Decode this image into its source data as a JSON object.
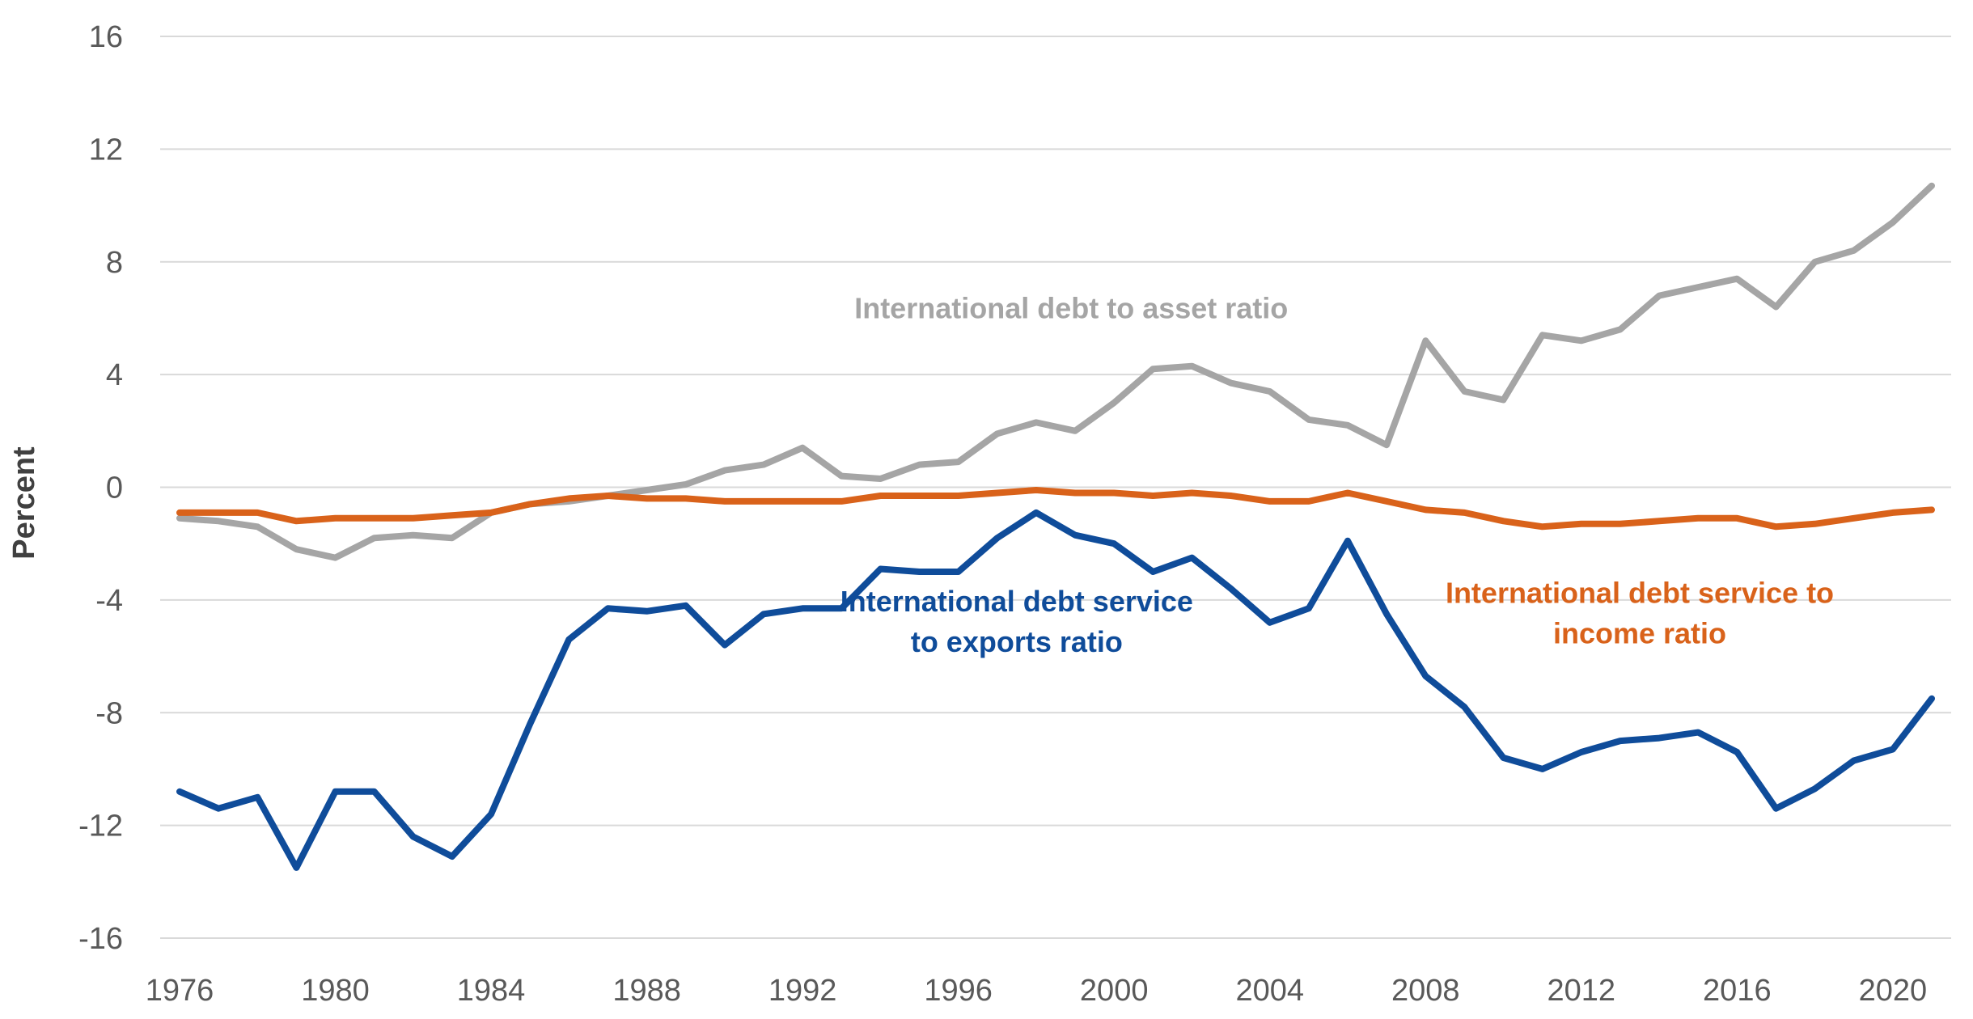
{
  "chart_data": {
    "type": "line",
    "title": "",
    "xlabel": "",
    "ylabel": "Percent",
    "ylim": [
      -16,
      16
    ],
    "yticks": [
      16,
      12,
      8,
      4,
      0,
      -4,
      -8,
      -12,
      -16
    ],
    "xlim": [
      1976,
      2021
    ],
    "xticks": [
      1976,
      1980,
      1984,
      1988,
      1992,
      1996,
      2000,
      2004,
      2008,
      2012,
      2016,
      2020
    ],
    "grid": true,
    "x": [
      1976,
      1977,
      1978,
      1979,
      1980,
      1981,
      1982,
      1983,
      1984,
      1985,
      1986,
      1987,
      1988,
      1989,
      1990,
      1991,
      1992,
      1993,
      1994,
      1995,
      1996,
      1997,
      1998,
      1999,
      2000,
      2001,
      2002,
      2003,
      2004,
      2005,
      2006,
      2007,
      2008,
      2009,
      2010,
      2011,
      2012,
      2013,
      2014,
      2015,
      2016,
      2017,
      2018,
      2019,
      2020,
      2021
    ],
    "series": [
      {
        "name": "International debt to asset ratio",
        "color": "#a5a5a5",
        "values": [
          -1.1,
          -1.2,
          -1.4,
          -2.2,
          -2.5,
          -1.8,
          -1.7,
          -1.8,
          -0.9,
          -0.6,
          -0.5,
          -0.3,
          -0.1,
          0.1,
          0.6,
          0.8,
          1.4,
          0.4,
          0.3,
          0.8,
          0.9,
          1.9,
          2.3,
          2.0,
          3.0,
          4.2,
          4.3,
          3.7,
          3.4,
          2.4,
          2.2,
          1.5,
          5.2,
          3.4,
          3.1,
          5.4,
          5.2,
          5.6,
          6.8,
          7.1,
          7.4,
          6.4,
          8.0,
          8.4,
          9.4,
          10.7
        ]
      },
      {
        "name": "International debt service to income ratio",
        "color": "#d9621a",
        "values": [
          -0.9,
          -0.9,
          -0.9,
          -1.2,
          -1.1,
          -1.1,
          -1.1,
          -1.0,
          -0.9,
          -0.6,
          -0.4,
          -0.3,
          -0.4,
          -0.4,
          -0.5,
          -0.5,
          -0.5,
          -0.5,
          -0.3,
          -0.3,
          -0.3,
          -0.2,
          -0.1,
          -0.2,
          -0.2,
          -0.3,
          -0.2,
          -0.3,
          -0.5,
          -0.5,
          -0.2,
          -0.5,
          -0.8,
          -0.9,
          -1.2,
          -1.4,
          -1.3,
          -1.3,
          -1.2,
          -1.1,
          -1.1,
          -1.4,
          -1.3,
          -1.1,
          -0.9,
          -0.8
        ]
      },
      {
        "name": "International debt service to exports ratio",
        "color": "#0f4c9a",
        "values": [
          -10.8,
          -11.4,
          -11.0,
          -13.5,
          -10.8,
          -10.8,
          -12.4,
          -13.1,
          -11.6,
          -8.4,
          -5.4,
          -4.3,
          -4.4,
          -4.2,
          -5.6,
          -4.5,
          -4.3,
          -4.3,
          -2.9,
          -3.0,
          -3.0,
          -1.8,
          -0.9,
          -1.7,
          -2.0,
          -3.0,
          -2.5,
          -3.6,
          -4.8,
          -4.3,
          -1.9,
          -4.5,
          -6.7,
          -7.8,
          -9.6,
          -10.0,
          -9.4,
          -9.0,
          -8.9,
          -8.7,
          -9.4,
          -11.4,
          -10.7,
          -9.7,
          -9.3,
          -7.5
        ]
      }
    ],
    "annotations": [
      {
        "series": 0,
        "lines": [
          "International debt to asset ratio"
        ],
        "anchor_x": 1998.9,
        "anchor_y": 6.0
      },
      {
        "series": 1,
        "lines": [
          "International debt service to",
          "income ratio"
        ],
        "anchor_x": 2013.5,
        "anchor_y": -4.1
      },
      {
        "series": 2,
        "lines": [
          "International debt service",
          "to exports ratio"
        ],
        "anchor_x": 1997.5,
        "anchor_y": -4.4
      }
    ]
  }
}
